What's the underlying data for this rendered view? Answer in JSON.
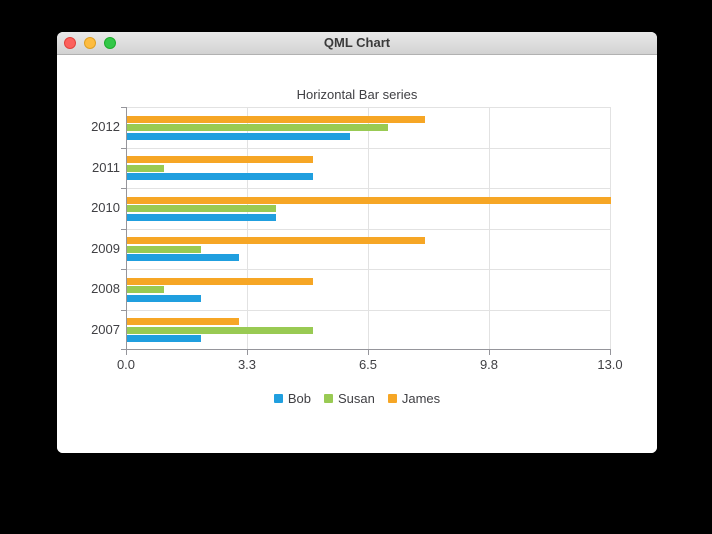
{
  "window": {
    "title": "QML Chart"
  },
  "chart_data": {
    "type": "bar",
    "orientation": "horizontal",
    "title": "Horizontal Bar series",
    "categories": [
      "2012",
      "2011",
      "2010",
      "2009",
      "2008",
      "2007"
    ],
    "series": [
      {
        "name": "Bob",
        "color": "#209fdf",
        "values": [
          6,
          5,
          4,
          3,
          2,
          2
        ]
      },
      {
        "name": "Susan",
        "color": "#99ca53",
        "values": [
          7,
          1,
          4,
          2,
          1,
          5
        ]
      },
      {
        "name": "James",
        "color": "#f6a625",
        "values": [
          8,
          5,
          13,
          8,
          5,
          3
        ]
      }
    ],
    "group_order_top_to_bottom": [
      "James",
      "Susan",
      "Bob"
    ],
    "x_axis": {
      "min": 0,
      "max": 13,
      "tick_labels": [
        "0.0",
        "3.3",
        "6.5",
        "9.8",
        "13.0"
      ]
    },
    "legend": {
      "position": "bottom",
      "items": [
        "Bob",
        "Susan",
        "James"
      ]
    },
    "grid": true
  },
  "colors": {
    "grid": "#e2e2e2",
    "axis": "#95959b",
    "label": "#404044",
    "traffic_red": "#fc615d",
    "traffic_yellow": "#fdbc40",
    "traffic_green": "#33c748"
  }
}
